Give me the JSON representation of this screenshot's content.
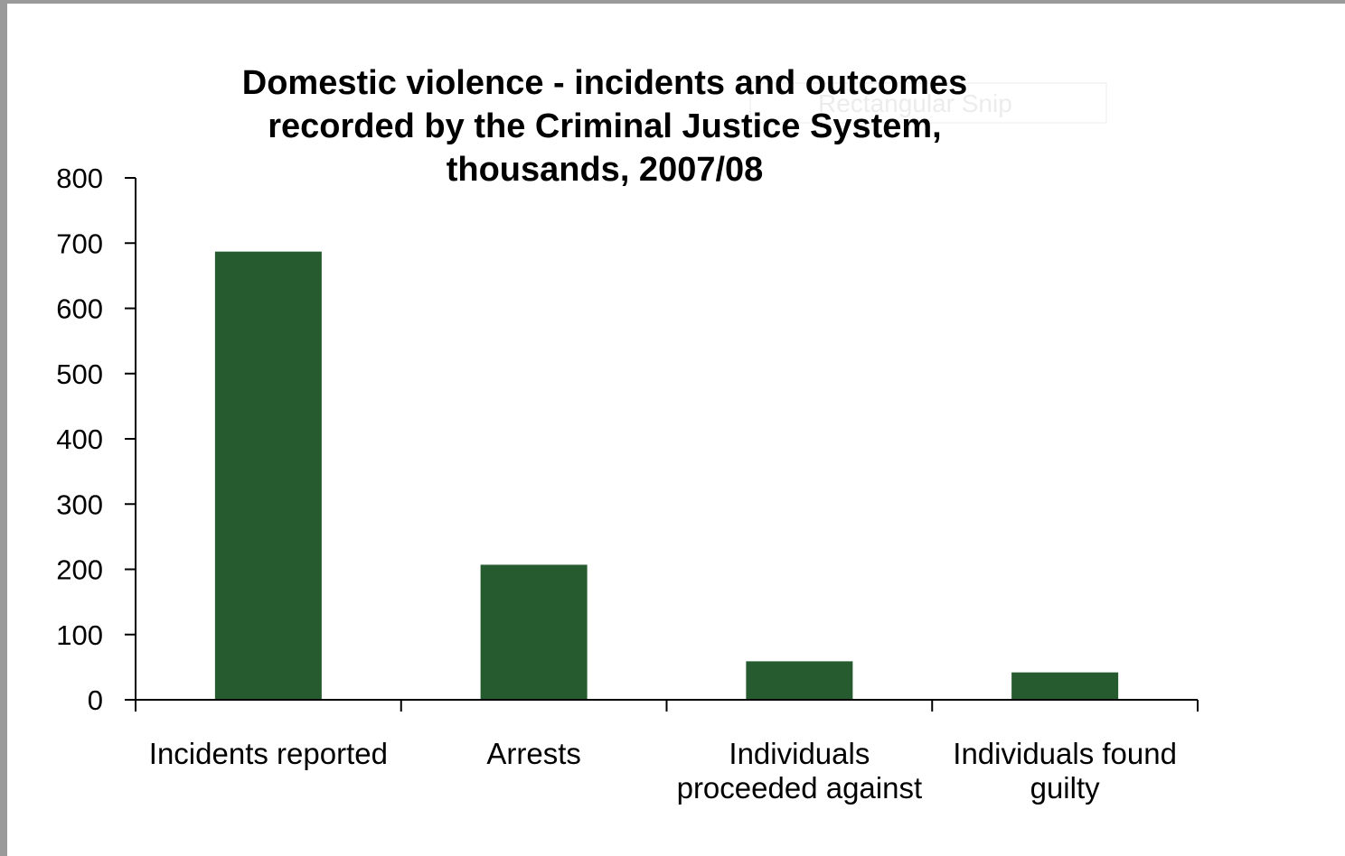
{
  "overlay": {
    "snip_label": "Rectangular Snip"
  },
  "chart_data": {
    "type": "bar",
    "title_lines": [
      "Domestic violence - incidents and outcomes",
      "recorded by the Criminal Justice System,",
      "thousands, 2007/08"
    ],
    "categories": [
      [
        "Incidents reported"
      ],
      [
        "Arrests"
      ],
      [
        "Individuals",
        "proceeded against"
      ],
      [
        "Individuals found",
        "guilty"
      ]
    ],
    "values": [
      687,
      207,
      59,
      42
    ],
    "ylim": [
      0,
      800
    ],
    "yticks": [
      0,
      100,
      200,
      300,
      400,
      500,
      600,
      700,
      800
    ],
    "xlabel": "",
    "ylabel": "",
    "grid": false,
    "legend": "none",
    "bar_color": "#265b2f"
  }
}
